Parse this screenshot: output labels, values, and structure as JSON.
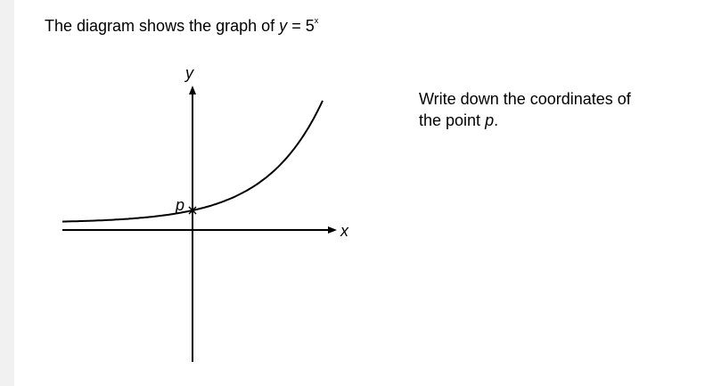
{
  "question": {
    "intro": "The diagram shows the graph of",
    "equation": {
      "lhs": "y",
      "rhs": "= 5",
      "exponent": "x"
    }
  },
  "diagram": {
    "y_axis_label": "y",
    "x_axis_label": "x",
    "point_label": "p"
  },
  "prompt": {
    "line1": "Write down the coordinates of",
    "line2": "the point",
    "variable": "p",
    "end": "."
  }
}
